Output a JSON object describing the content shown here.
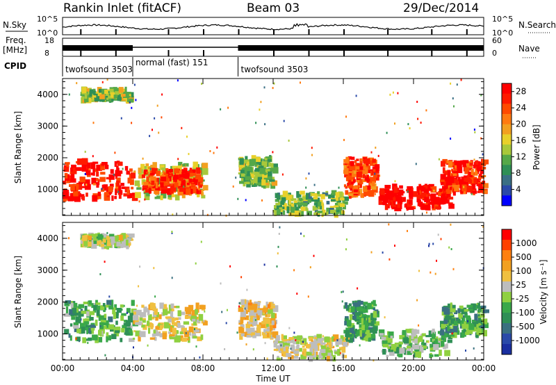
{
  "header": {
    "title": "Rankin Inlet (fitACF)",
    "beam": "Beam 03",
    "date": "29/Dec/2014"
  },
  "strips": {
    "nsky_label": "N.Sky",
    "freq_label_top": "Freq.",
    "freq_label_unit": "[MHz]",
    "cpid_label": "CPID",
    "nsearch_label": "N.Search",
    "nave_label": "Nave",
    "nsky_ticks": [
      "10^5",
      "10^0"
    ],
    "freq_ticks": [
      "18",
      "8"
    ],
    "nave_ticks": [
      "60",
      "0"
    ],
    "nsearch_ticks": [
      "10^5",
      "10^0"
    ]
  },
  "cpid": [
    {
      "name": "twofsound 3503",
      "start": 0,
      "end": 4.0
    },
    {
      "name": "normal (fast) 151",
      "start": 4.0,
      "end": 10.0
    },
    {
      "name": "twofsound 3503",
      "start": 10.0,
      "end": 24.0
    }
  ],
  "chart_data": [
    {
      "type": "heatmap",
      "title": "",
      "xlabel": "Time UT",
      "ylabel": "Slant Range [km]",
      "xlim": [
        0,
        24
      ],
      "ylim": [
        180,
        4500
      ],
      "xticks": [
        "00:00",
        "04:00",
        "08:00",
        "12:00",
        "16:00",
        "20:00",
        "00:00"
      ],
      "yticks": [
        1000,
        2000,
        3000,
        4000
      ],
      "colorbar": {
        "label": "Power [dB]",
        "ticks": [
          4,
          8,
          12,
          16,
          20,
          24,
          28
        ],
        "range": [
          0,
          30
        ],
        "colors": [
          "#0000ff",
          "#2a49a8",
          "#3a6f84",
          "#2f8f56",
          "#55a848",
          "#a8c83a",
          "#e8d02a",
          "#f2a020",
          "#ff7a10",
          "#ff4a00",
          "#ff1a00",
          "#ff0000"
        ]
      },
      "regions": [
        {
          "t0": 0.0,
          "t1": 4.0,
          "r0": 700,
          "r1": 1900,
          "value": 27
        },
        {
          "t0": 1.0,
          "t1": 3.8,
          "r0": 3800,
          "r1": 4150,
          "value": 14
        },
        {
          "t0": 4.0,
          "t1": 8.0,
          "r0": 700,
          "r1": 1800,
          "value": 15
        },
        {
          "t0": 4.5,
          "t1": 7.8,
          "r0": 900,
          "r1": 1600,
          "value": 26
        },
        {
          "t0": 10.0,
          "t1": 12.0,
          "r0": 1100,
          "r1": 2000,
          "value": 13
        },
        {
          "t0": 12.0,
          "t1": 16.0,
          "r0": 200,
          "r1": 900,
          "value": 12
        },
        {
          "t0": 16.0,
          "t1": 17.8,
          "r0": 800,
          "r1": 2000,
          "value": 24
        },
        {
          "t0": 18.0,
          "t1": 22.0,
          "r0": 400,
          "r1": 1100,
          "value": 29
        },
        {
          "t0": 21.5,
          "t1": 24.0,
          "r0": 900,
          "r1": 1900,
          "value": 26
        }
      ]
    },
    {
      "type": "heatmap",
      "title": "",
      "xlabel": "Time UT",
      "ylabel": "Slant Range [km]",
      "xlim": [
        0,
        24
      ],
      "ylim": [
        180,
        4500
      ],
      "xticks": [
        "00:00",
        "04:00",
        "08:00",
        "12:00",
        "16:00",
        "20:00",
        "00:00"
      ],
      "yticks": [
        1000,
        2000,
        3000,
        4000
      ],
      "colorbar": {
        "label": "Velocity [m s⁻¹]",
        "ticks": [
          1000,
          500,
          100,
          25,
          -25,
          -100,
          -500,
          -1000
        ],
        "range": [
          -1200,
          1200
        ],
        "colors": [
          "#1a2fa0",
          "#2a4aa8",
          "#3a7080",
          "#2f8f56",
          "#3aa84a",
          "#8fd040",
          "#bdbdbd",
          "#f0c040",
          "#f2a020",
          "#ff8010",
          "#ff4000",
          "#ff0000"
        ]
      },
      "regions": [
        {
          "t0": 0.0,
          "t1": 4.0,
          "r0": 800,
          "r1": 2000,
          "value": -300
        },
        {
          "t0": 1.0,
          "t1": 3.8,
          "r0": 3750,
          "r1": 4100,
          "value": 80
        },
        {
          "t0": 4.0,
          "t1": 8.0,
          "r0": 800,
          "r1": 1900,
          "value": 200
        },
        {
          "t0": 10.0,
          "t1": 12.0,
          "r0": 900,
          "r1": 2000,
          "value": 300
        },
        {
          "t0": 12.0,
          "t1": 16.0,
          "r0": 200,
          "r1": 900,
          "value": 150
        },
        {
          "t0": 16.0,
          "t1": 17.8,
          "r0": 800,
          "r1": 2000,
          "value": -400
        },
        {
          "t0": 18.0,
          "t1": 22.0,
          "r0": 300,
          "r1": 1100,
          "value": -150
        },
        {
          "t0": 21.5,
          "t1": 24.0,
          "r0": 900,
          "r1": 1900,
          "value": -400
        }
      ]
    }
  ]
}
